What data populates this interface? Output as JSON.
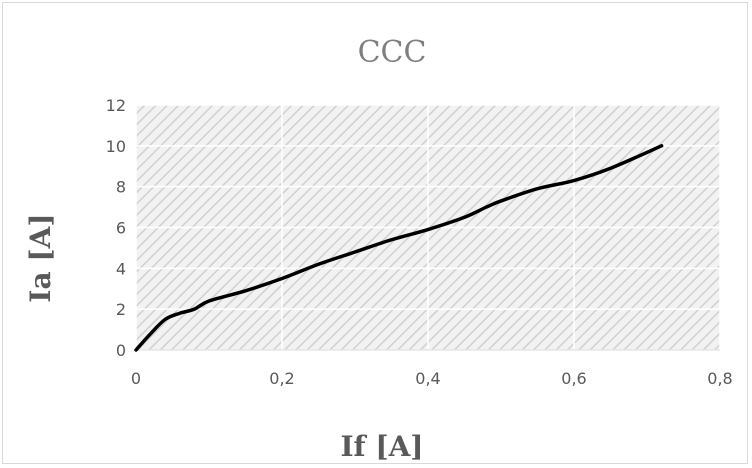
{
  "chart_data": {
    "type": "line",
    "title": "CCC",
    "xlabel": "If [A]",
    "ylabel": "Ia [A]",
    "xlim": [
      0,
      0.8
    ],
    "ylim": [
      0,
      12
    ],
    "x_ticks": [
      "0",
      "0,2",
      "0,4",
      "0,6",
      "0,8"
    ],
    "y_ticks": [
      "0",
      "2",
      "4",
      "6",
      "8",
      "10",
      "12"
    ],
    "grid": true,
    "plot_background": "hatched light gray",
    "series": [
      {
        "color": "#000000",
        "points": [
          [
            0.0,
            0.0
          ],
          [
            0.02,
            0.8
          ],
          [
            0.04,
            1.5
          ],
          [
            0.06,
            1.8
          ],
          [
            0.08,
            2.0
          ],
          [
            0.1,
            2.4
          ],
          [
            0.15,
            2.9
          ],
          [
            0.2,
            3.5
          ],
          [
            0.25,
            4.2
          ],
          [
            0.3,
            4.8
          ],
          [
            0.35,
            5.4
          ],
          [
            0.4,
            5.9
          ],
          [
            0.45,
            6.5
          ],
          [
            0.48,
            7.0
          ],
          [
            0.5,
            7.3
          ],
          [
            0.55,
            7.9
          ],
          [
            0.6,
            8.3
          ],
          [
            0.65,
            8.9
          ],
          [
            0.72,
            10.0
          ]
        ]
      }
    ]
  }
}
